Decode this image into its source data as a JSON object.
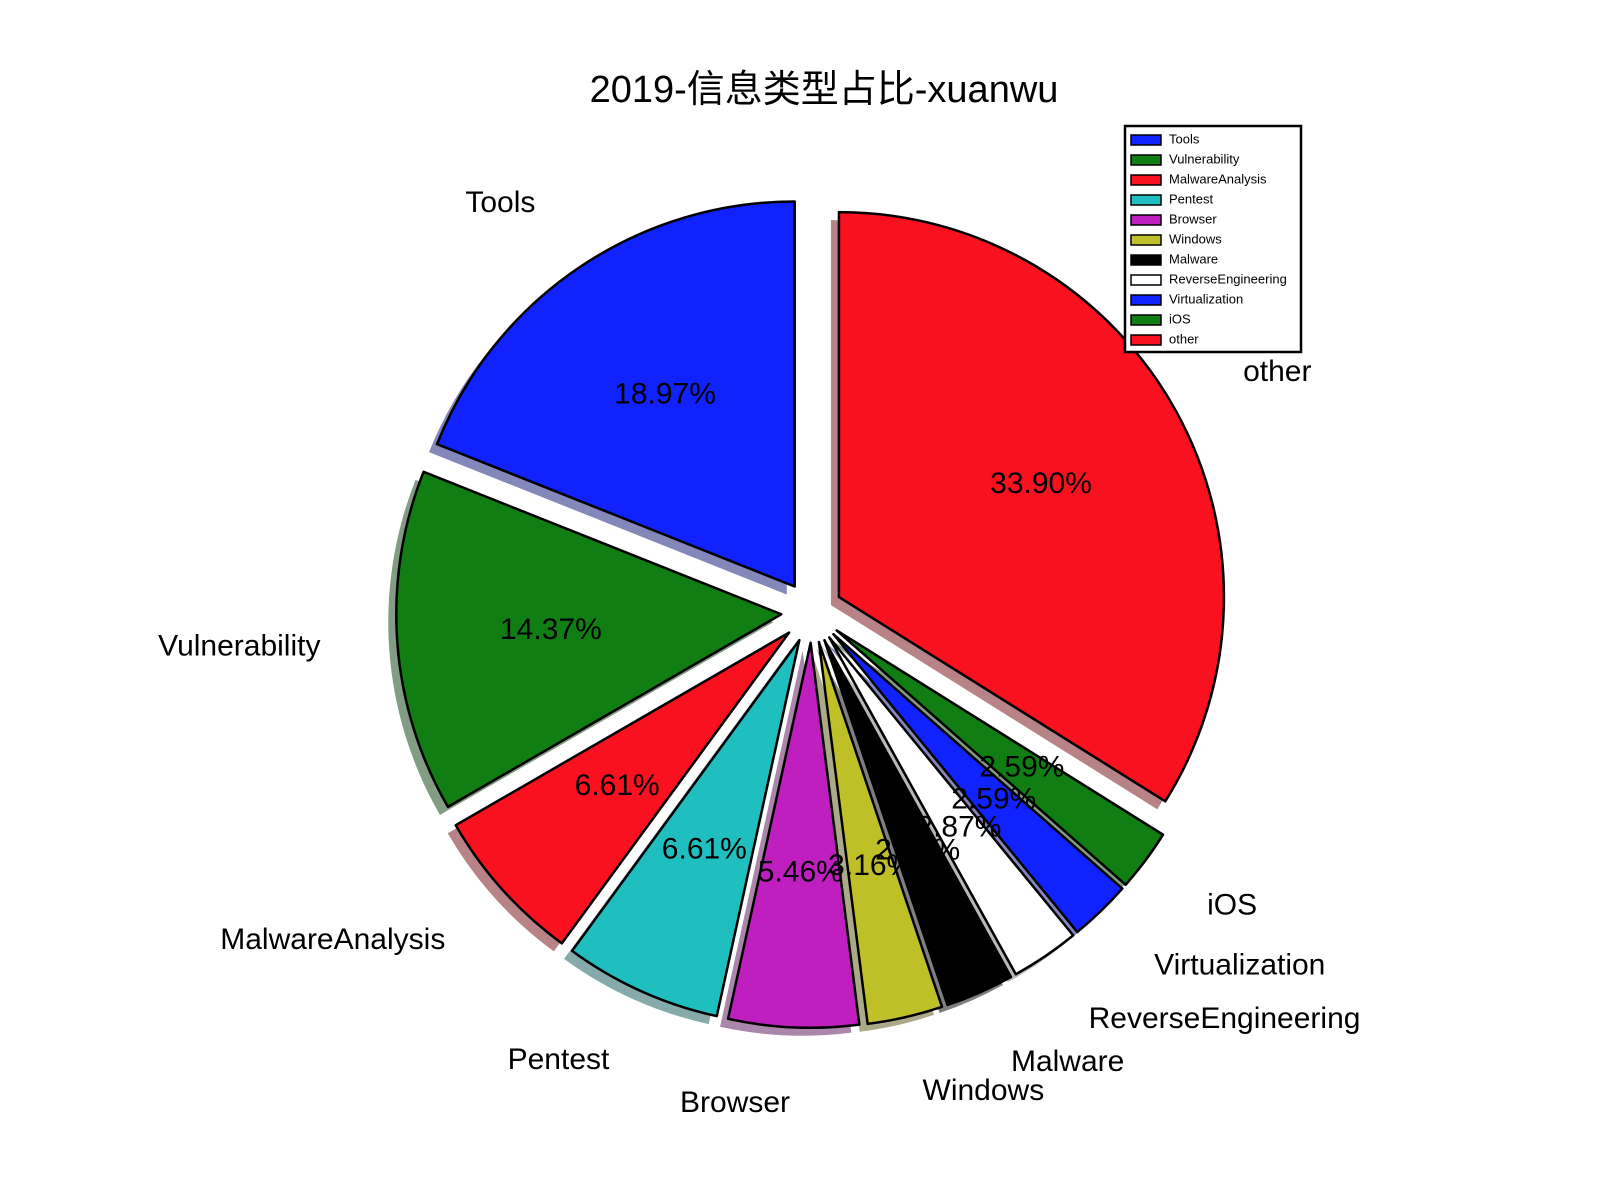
{
  "chart_data": {
    "type": "pie",
    "title": "2019-信息类型占比-xuanwu",
    "categories": [
      "Tools",
      "Vulnerability",
      "MalwareAnalysis",
      "Pentest",
      "Browser",
      "Windows",
      "Malware",
      "ReverseEngineering",
      "Virtualization",
      "iOS",
      "other"
    ],
    "values": [
      18.97,
      14.37,
      6.61,
      6.61,
      5.46,
      3.16,
      2.87,
      2.87,
      2.59,
      2.59,
      33.9
    ],
    "value_labels": [
      "18.97%",
      "14.37%",
      "6.61%",
      "6.61%",
      "5.46%",
      "3.16%",
      "2.87%",
      "2.87%",
      "2.59%",
      "2.59%",
      "33.90%"
    ],
    "colors": [
      "#0f22ff",
      "#117e13",
      "#fa111f",
      "#20bfbf",
      "#bf1fbf",
      "#bfbf27",
      "#000000",
      "#ffffff",
      "#0f22ff",
      "#117e13",
      "#fa111f"
    ],
    "legend": "upper right"
  }
}
